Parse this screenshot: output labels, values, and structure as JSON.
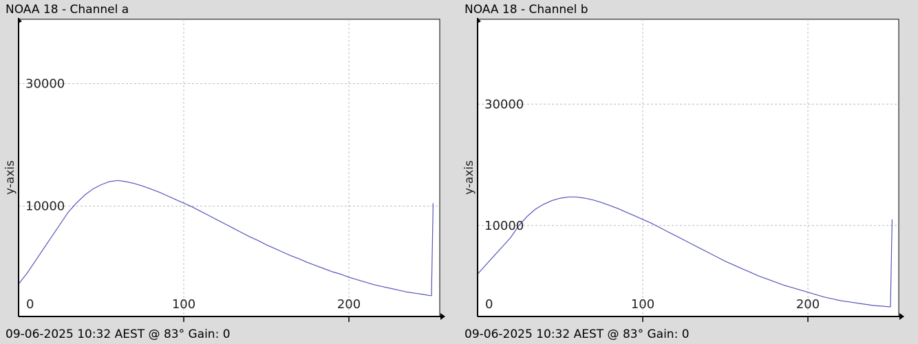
{
  "chart_data": [
    {
      "type": "line",
      "title": "NOAA 18 - Channel a",
      "footer": "09-06-2025 10:32 AEST @ 83° Gain: 0 ",
      "ylabel": "y-axis",
      "xlabel": "",
      "xlim": [
        0,
        255
      ],
      "ylim": [
        -8000,
        40500
      ],
      "xticks": [
        0,
        100,
        200
      ],
      "yticks": [
        10000,
        30000
      ],
      "grid": true,
      "line_color": "#5555bb",
      "series": [
        {
          "x": [
            0,
            5,
            10,
            15,
            20,
            25,
            30,
            35,
            40,
            45,
            50,
            55,
            60,
            65,
            70,
            75,
            80,
            85,
            90,
            95,
            100,
            105,
            110,
            115,
            120,
            125,
            130,
            135,
            140,
            145,
            150,
            155,
            160,
            165,
            170,
            175,
            180,
            185,
            190,
            195,
            200,
            205,
            210,
            215,
            220,
            225,
            230,
            235,
            240,
            245,
            249,
            250,
            251
          ],
          "y": [
            -2700,
            -1000,
            1000,
            3000,
            5000,
            7000,
            9000,
            10500,
            11800,
            12800,
            13500,
            14000,
            14200,
            14000,
            13700,
            13300,
            12800,
            12300,
            11700,
            11100,
            10500,
            9900,
            9200,
            8500,
            7800,
            7100,
            6400,
            5700,
            5000,
            4400,
            3700,
            3100,
            2500,
            1900,
            1400,
            800,
            300,
            -200,
            -700,
            -1100,
            -1600,
            -2000,
            -2400,
            -2800,
            -3100,
            -3400,
            -3700,
            -4000,
            -4200,
            -4400,
            -4600,
            -4600,
            10500
          ]
        }
      ]
    },
    {
      "type": "line",
      "title": "NOAA 18 - Channel b",
      "footer": "09-06-2025 10:32 AEST @ 83° Gain: 0 ",
      "ylabel": "y-axis",
      "xlabel": "",
      "xlim": [
        0,
        255
      ],
      "ylim": [
        -5000,
        44000
      ],
      "xticks": [
        0,
        100,
        200
      ],
      "yticks": [
        10000,
        30000
      ],
      "grid": true,
      "line_color": "#5555bb",
      "series": [
        {
          "x": [
            0,
            5,
            10,
            15,
            20,
            25,
            30,
            35,
            40,
            45,
            50,
            55,
            60,
            65,
            70,
            75,
            80,
            85,
            90,
            95,
            100,
            105,
            110,
            115,
            120,
            125,
            130,
            135,
            140,
            145,
            150,
            155,
            160,
            165,
            170,
            175,
            180,
            185,
            190,
            195,
            200,
            205,
            210,
            215,
            220,
            225,
            230,
            235,
            240,
            245,
            249,
            250,
            251
          ],
          "y": [
            2000,
            3500,
            5000,
            6500,
            8000,
            10000,
            11500,
            12700,
            13500,
            14100,
            14500,
            14700,
            14700,
            14500,
            14200,
            13800,
            13300,
            12800,
            12200,
            11600,
            11000,
            10400,
            9700,
            9000,
            8300,
            7600,
            6900,
            6200,
            5500,
            4800,
            4100,
            3500,
            2900,
            2300,
            1700,
            1200,
            700,
            200,
            -200,
            -600,
            -1000,
            -1400,
            -1800,
            -2100,
            -2400,
            -2600,
            -2800,
            -3000,
            -3200,
            -3300,
            -3400,
            -3400,
            11000
          ]
        }
      ]
    }
  ]
}
